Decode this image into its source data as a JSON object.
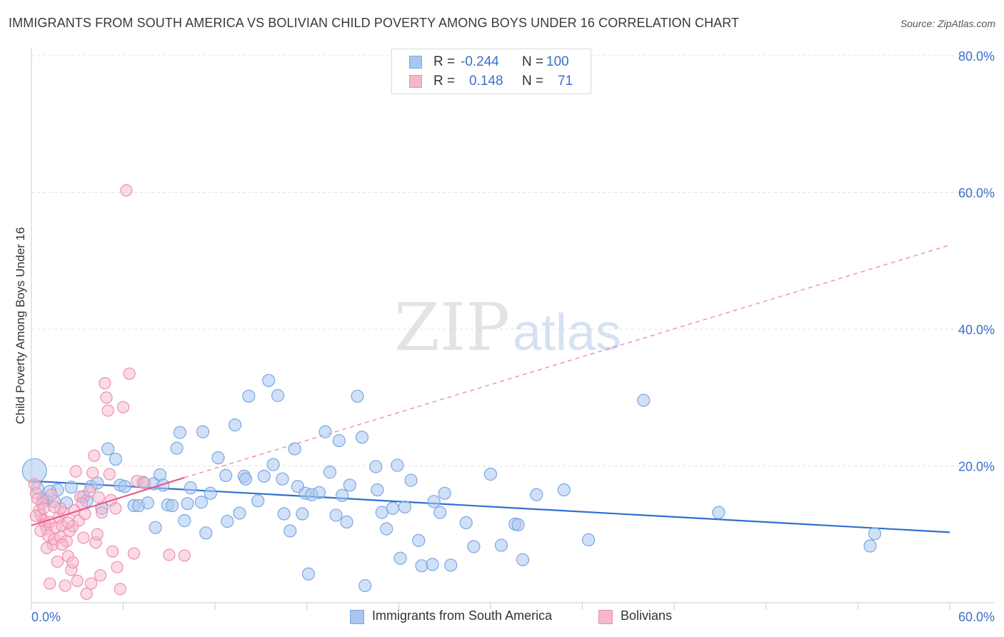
{
  "header": {
    "title": "IMMIGRANTS FROM SOUTH AMERICA VS BOLIVIAN CHILD POVERTY AMONG BOYS UNDER 16 CORRELATION CHART",
    "source": "Source: ZipAtlas.com"
  },
  "legend": {
    "rows": [
      {
        "r_label": "R =",
        "r_value": "-0.244",
        "n_label": "N =",
        "n_value": "100"
      },
      {
        "r_label": "R =",
        "r_value": "0.148",
        "n_label": "N =",
        "n_value": "71"
      }
    ]
  },
  "bottom_legend": {
    "items": [
      "Immigrants from South America",
      "Bolivians"
    ]
  },
  "watermark": {
    "zip": "ZIP",
    "atlas": "atlas"
  },
  "colors": {
    "blue_fill": "#aac6ee",
    "blue_stroke": "#7aa7e4",
    "blue_line": "#2f6fd0",
    "pink_fill": "#f5b8cb",
    "pink_stroke": "#ef8fae",
    "pink_line": "#e85d8a",
    "axis_text": "#3b6fc9"
  },
  "chart_data": {
    "type": "scatter",
    "title": "IMMIGRANTS FROM SOUTH AMERICA VS BOLIVIAN CHILD POVERTY AMONG BOYS UNDER 16 CORRELATION CHART",
    "xlabel": "",
    "ylabel": "Child Poverty Among Boys Under 16",
    "xlim": [
      0,
      60
    ],
    "ylim": [
      0,
      80
    ],
    "x_tick_labels": [
      "0.0%",
      "60.0%"
    ],
    "y_tick_labels": [
      "20.0%",
      "40.0%",
      "60.0%",
      "80.0%"
    ],
    "y_ticks": [
      20,
      40,
      60,
      80
    ],
    "grid": true,
    "legend_placement": "top-center",
    "series": [
      {
        "name": "Immigrants from South America",
        "color": "#aac6ee",
        "trend": {
          "x": [
            0,
            60
          ],
          "y": [
            17.8,
            10.3
          ],
          "style": "solid"
        },
        "points": [
          [
            0.2,
            19.3
          ],
          [
            0.4,
            16.8
          ],
          [
            0.8,
            15.2
          ],
          [
            1.0,
            15.0
          ],
          [
            1.5,
            14.8
          ],
          [
            1.7,
            16.5
          ],
          [
            2.3,
            14.6
          ],
          [
            2.6,
            16.9
          ],
          [
            3.4,
            15.5
          ],
          [
            3.6,
            14.9
          ],
          [
            3.9,
            17.0
          ],
          [
            4.3,
            17.5
          ],
          [
            4.6,
            13.8
          ],
          [
            5.0,
            22.5
          ],
          [
            5.5,
            21.0
          ],
          [
            5.8,
            17.2
          ],
          [
            6.1,
            17.0
          ],
          [
            6.7,
            14.2
          ],
          [
            7.0,
            14.2
          ],
          [
            7.3,
            17.6
          ],
          [
            7.6,
            14.6
          ],
          [
            8.0,
            17.4
          ],
          [
            8.1,
            11.0
          ],
          [
            8.4,
            18.7
          ],
          [
            8.6,
            17.2
          ],
          [
            8.9,
            14.3
          ],
          [
            9.2,
            14.2
          ],
          [
            9.5,
            22.6
          ],
          [
            9.7,
            24.9
          ],
          [
            10.0,
            12.0
          ],
          [
            10.2,
            14.5
          ],
          [
            10.4,
            16.8
          ],
          [
            11.1,
            14.7
          ],
          [
            11.2,
            25.0
          ],
          [
            11.4,
            10.2
          ],
          [
            11.7,
            16.0
          ],
          [
            12.2,
            21.2
          ],
          [
            12.7,
            18.6
          ],
          [
            12.8,
            11.9
          ],
          [
            13.3,
            26.0
          ],
          [
            13.6,
            13.1
          ],
          [
            13.9,
            18.5
          ],
          [
            14.0,
            18.1
          ],
          [
            14.2,
            30.2
          ],
          [
            14.8,
            14.9
          ],
          [
            15.2,
            18.5
          ],
          [
            15.5,
            32.5
          ],
          [
            15.8,
            20.2
          ],
          [
            16.1,
            30.3
          ],
          [
            16.4,
            18.1
          ],
          [
            16.5,
            13.0
          ],
          [
            16.9,
            10.5
          ],
          [
            17.2,
            22.5
          ],
          [
            17.4,
            17.0
          ],
          [
            17.7,
            13.0
          ],
          [
            17.9,
            16.0
          ],
          [
            18.1,
            4.2
          ],
          [
            18.3,
            15.8
          ],
          [
            18.8,
            16.1
          ],
          [
            19.2,
            25.0
          ],
          [
            19.5,
            19.1
          ],
          [
            19.9,
            12.8
          ],
          [
            20.1,
            23.7
          ],
          [
            20.3,
            15.7
          ],
          [
            20.6,
            11.8
          ],
          [
            20.8,
            17.2
          ],
          [
            21.3,
            30.2
          ],
          [
            21.6,
            24.2
          ],
          [
            21.8,
            2.5
          ],
          [
            22.5,
            19.9
          ],
          [
            22.6,
            16.5
          ],
          [
            22.9,
            13.2
          ],
          [
            23.2,
            10.8
          ],
          [
            23.6,
            13.8
          ],
          [
            23.9,
            20.1
          ],
          [
            24.1,
            6.5
          ],
          [
            24.4,
            14.0
          ],
          [
            24.8,
            17.9
          ],
          [
            25.3,
            9.1
          ],
          [
            25.5,
            5.4
          ],
          [
            26.2,
            5.6
          ],
          [
            26.3,
            14.8
          ],
          [
            26.7,
            13.2
          ],
          [
            27.0,
            16.0
          ],
          [
            27.4,
            5.5
          ],
          [
            28.4,
            11.7
          ],
          [
            28.9,
            8.2
          ],
          [
            30.0,
            18.8
          ],
          [
            30.7,
            8.4
          ],
          [
            31.6,
            11.5
          ],
          [
            31.8,
            11.4
          ],
          [
            32.1,
            6.3
          ],
          [
            33.0,
            15.8
          ],
          [
            34.8,
            16.5
          ],
          [
            36.4,
            9.2
          ],
          [
            40.0,
            29.6
          ],
          [
            44.9,
            13.2
          ],
          [
            54.8,
            8.3
          ],
          [
            55.1,
            10.1
          ],
          [
            1.2,
            16.3
          ]
        ],
        "point_sizes": {
          "large": [
            0
          ]
        }
      },
      {
        "name": "Bolivians",
        "color": "#f5b8cb",
        "trend": {
          "x": [
            0,
            10
          ],
          "y": [
            11.3,
            18.3
          ],
          "extended": {
            "x": [
              10,
              60
            ],
            "y": [
              18.3,
              52.3
            ]
          },
          "style": "solid-then-dashed"
        },
        "points": [
          [
            0.2,
            17.3
          ],
          [
            0.3,
            16.0
          ],
          [
            0.4,
            15.2
          ],
          [
            0.5,
            13.5
          ],
          [
            0.6,
            12.8
          ],
          [
            0.7,
            14.5
          ],
          [
            0.8,
            12.0
          ],
          [
            0.9,
            11.5
          ],
          [
            1.0,
            10.8
          ],
          [
            1.1,
            9.8
          ],
          [
            1.2,
            11.8
          ],
          [
            1.3,
            15.8
          ],
          [
            1.4,
            8.5
          ],
          [
            1.5,
            9.3
          ],
          [
            1.6,
            11.0
          ],
          [
            1.7,
            6.0
          ],
          [
            1.8,
            12.5
          ],
          [
            1.9,
            9.6
          ],
          [
            2.0,
            11.3
          ],
          [
            2.1,
            13.2
          ],
          [
            2.2,
            2.5
          ],
          [
            2.3,
            9.0
          ],
          [
            2.4,
            6.8
          ],
          [
            2.5,
            10.5
          ],
          [
            2.6,
            4.8
          ],
          [
            2.7,
            5.9
          ],
          [
            2.7,
            11.2
          ],
          [
            2.9,
            19.2
          ],
          [
            3.0,
            3.2
          ],
          [
            3.1,
            12.0
          ],
          [
            3.2,
            15.5
          ],
          [
            3.3,
            14.5
          ],
          [
            3.5,
            13.0
          ],
          [
            3.6,
            1.3
          ],
          [
            3.8,
            16.3
          ],
          [
            3.9,
            2.8
          ],
          [
            4.0,
            19.0
          ],
          [
            4.1,
            21.5
          ],
          [
            4.2,
            8.8
          ],
          [
            4.3,
            10.0
          ],
          [
            4.4,
            15.4
          ],
          [
            4.5,
            4.0
          ],
          [
            4.6,
            13.2
          ],
          [
            4.8,
            32.1
          ],
          [
            4.9,
            30.0
          ],
          [
            5.0,
            28.1
          ],
          [
            5.1,
            18.8
          ],
          [
            5.2,
            15.0
          ],
          [
            5.3,
            7.5
          ],
          [
            5.5,
            13.8
          ],
          [
            5.6,
            5.2
          ],
          [
            5.8,
            2.0
          ],
          [
            6.0,
            28.6
          ],
          [
            6.2,
            60.3
          ],
          [
            6.4,
            33.5
          ],
          [
            6.7,
            7.2
          ],
          [
            6.9,
            17.8
          ],
          [
            7.4,
            17.5
          ],
          [
            9.0,
            7.0
          ],
          [
            10.0,
            6.9
          ],
          [
            0.6,
            10.5
          ],
          [
            1.0,
            8.0
          ],
          [
            1.9,
            13.8
          ],
          [
            2.4,
            11.7
          ],
          [
            2.8,
            13.5
          ],
          [
            0.3,
            12.7
          ],
          [
            1.5,
            14.0
          ],
          [
            3.4,
            9.5
          ],
          [
            0.8,
            13.8
          ],
          [
            2.0,
            8.5
          ],
          [
            1.2,
            2.8
          ]
        ]
      }
    ]
  }
}
